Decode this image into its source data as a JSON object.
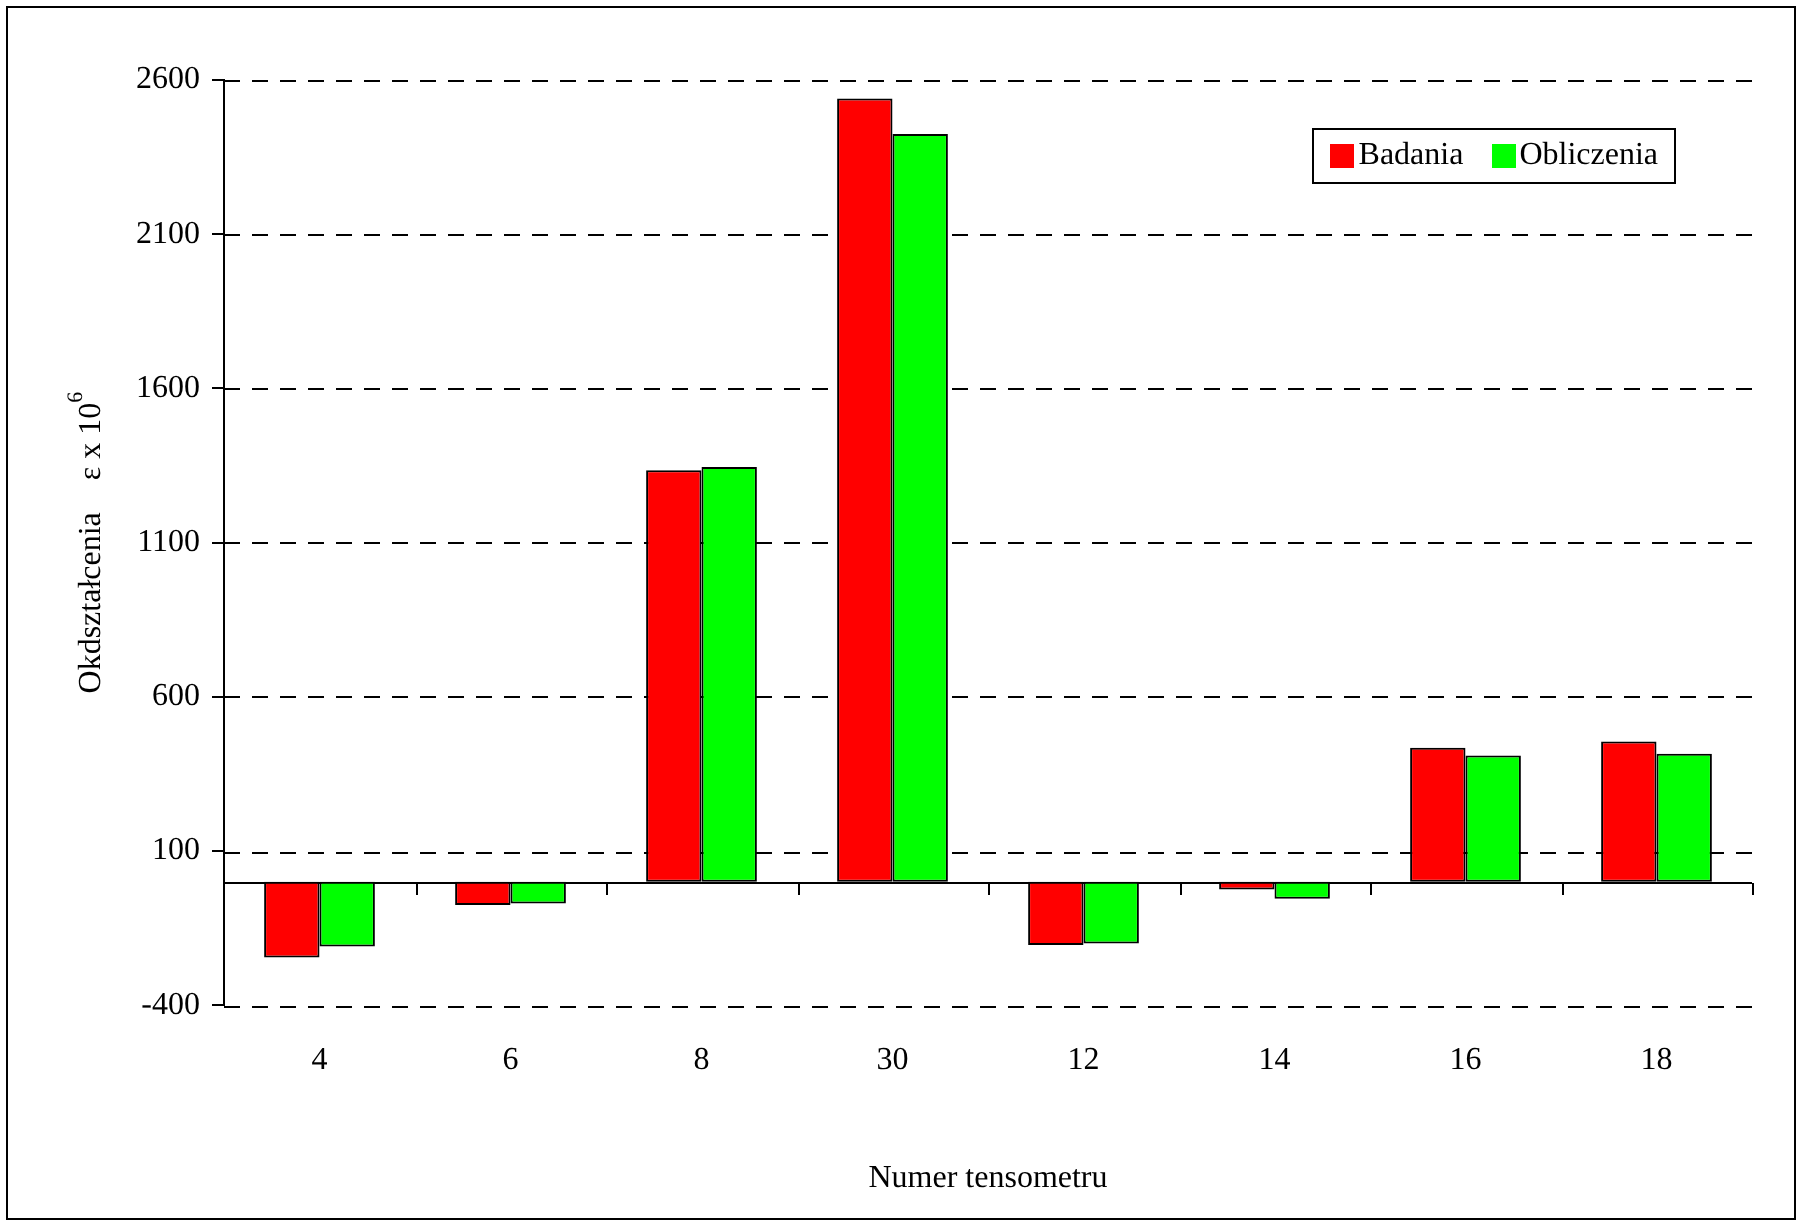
{
  "chart_data": {
    "type": "bar",
    "xlabel": "Numer tensometru",
    "ylabel": "Okdształcenia    ε x 10$^{6}$",
    "categories": [
      "4",
      "6",
      "8",
      "30",
      "12",
      "14",
      "16",
      "18"
    ],
    "series": [
      {
        "name": "Badania",
        "color": "#ff0000",
        "values": [
          -245,
          -75,
          1335,
          2540,
          -205,
          -25,
          435,
          455
        ]
      },
      {
        "name": "Obliczenia",
        "color": "#00ff00",
        "values": [
          -210,
          -70,
          1345,
          2425,
          -200,
          -55,
          410,
          415
        ]
      }
    ],
    "ylim": [
      -400,
      2600
    ],
    "yticks": [
      -400,
      100,
      600,
      1100,
      1600,
      2100,
      2600
    ],
    "grid": "y",
    "legend": "top right"
  }
}
